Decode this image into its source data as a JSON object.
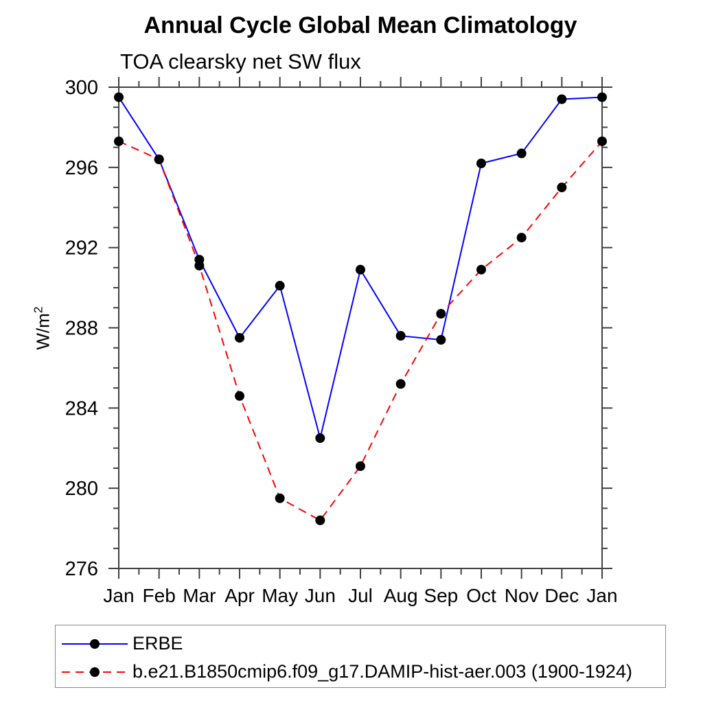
{
  "title": "Annual Cycle Global Mean Climatology",
  "subtitle": "TOA clearsky net SW flux",
  "y_axis": {
    "label_base": "W/m",
    "label_exponent": "2",
    "unit": "W/m²"
  },
  "colors": {
    "axis": "#404040",
    "text": "#000000",
    "erbe_line": "#0000ff",
    "model_line": "#ff0000",
    "marker": "#000000",
    "legend_border": "#888888"
  },
  "chart_data": {
    "type": "line",
    "title": "Annual Cycle Global Mean Climatology",
    "subtitle": "TOA clearsky net SW flux",
    "xlabel": "",
    "ylabel": "W/m²",
    "categories": [
      "Jan",
      "Feb",
      "Mar",
      "Apr",
      "May",
      "Jun",
      "Jul",
      "Aug",
      "Sep",
      "Oct",
      "Nov",
      "Dec",
      "Jan"
    ],
    "ylim": [
      276,
      300
    ],
    "y_major_step": 4,
    "y_minor_step": 1,
    "y_tick_labels": [
      "276",
      "280",
      "284",
      "288",
      "292",
      "296",
      "300"
    ],
    "grid": false,
    "legend_position": "bottom-left-box",
    "series": [
      {
        "name": "ERBE",
        "color": "#0000ff",
        "line_style": "solid",
        "marker": "filled-circle",
        "marker_color": "#000000",
        "values": [
          299.5,
          296.4,
          291.4,
          287.5,
          290.1,
          282.5,
          290.9,
          287.6,
          287.4,
          296.2,
          296.7,
          299.4,
          299.5
        ]
      },
      {
        "name": "b.e21.B1850cmip6.f09_g17.DAMIP-hist-aer.003 (1900-1924)",
        "color": "#ff0000",
        "line_style": "dashed",
        "marker": "filled-circle",
        "marker_color": "#000000",
        "values": [
          297.3,
          296.4,
          291.1,
          284.6,
          279.5,
          278.4,
          281.1,
          285.2,
          288.7,
          290.9,
          292.5,
          295.0,
          297.3
        ]
      }
    ]
  }
}
